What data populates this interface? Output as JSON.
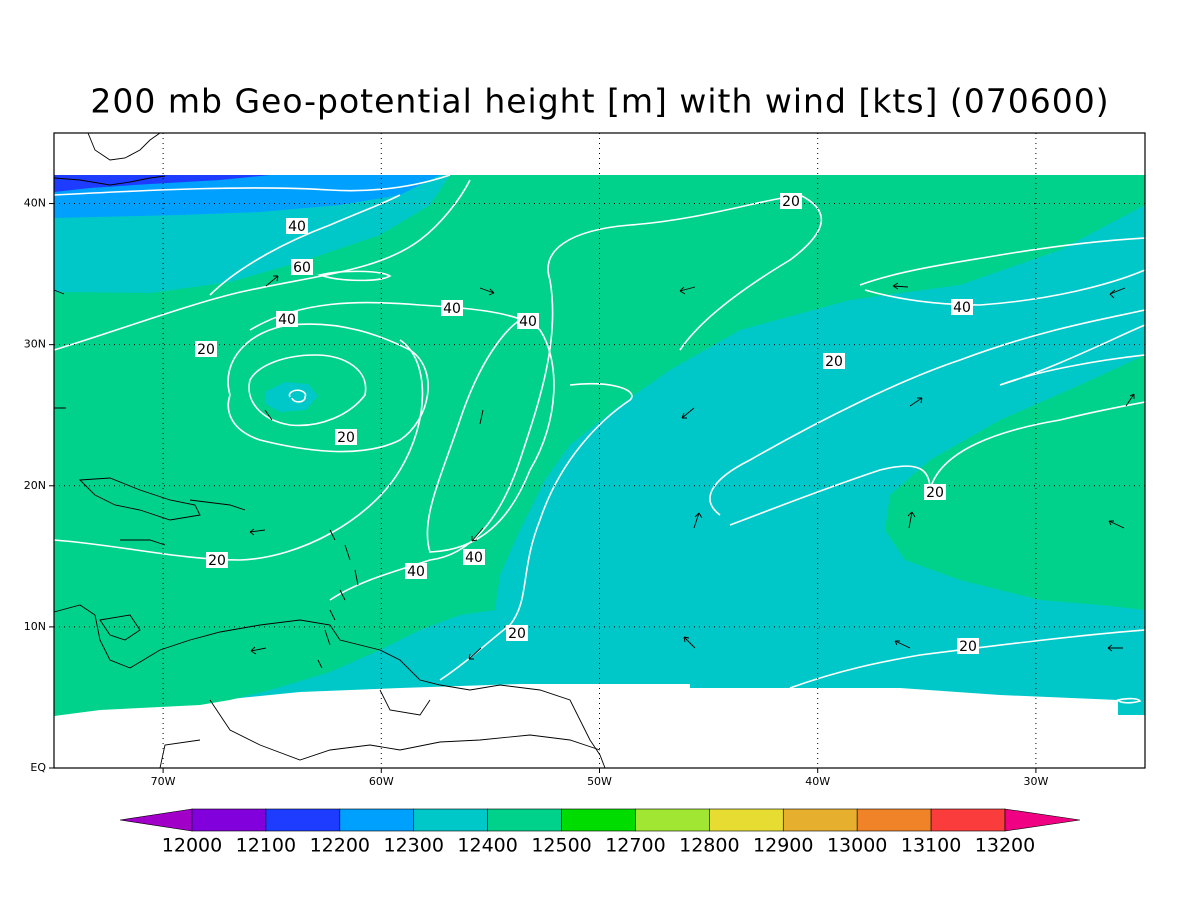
{
  "title": "200 mb Geo-potential height [m] with wind [kts] (070600)",
  "map": {
    "xlim": [
      -75,
      -25
    ],
    "ylim": [
      0,
      45
    ],
    "xticks": [
      {
        "value": -70,
        "label": "70W"
      },
      {
        "value": -60,
        "label": "60W"
      },
      {
        "value": -50,
        "label": "50W"
      },
      {
        "value": -40,
        "label": "40W"
      },
      {
        "value": -30,
        "label": "30W"
      }
    ],
    "yticks": [
      {
        "value": 0,
        "label": "EQ"
      },
      {
        "value": 10,
        "label": "10N"
      },
      {
        "value": 20,
        "label": "20N"
      },
      {
        "value": 30,
        "label": "30N"
      },
      {
        "value": 40,
        "label": "40N"
      }
    ],
    "grid": true
  },
  "contour_labels": [
    40,
    60,
    40,
    40,
    40,
    20,
    20,
    20,
    40,
    20,
    20,
    40,
    40,
    20,
    20,
    20
  ],
  "colorbar": {
    "levels": [
      12000,
      12100,
      12200,
      12300,
      12400,
      12500,
      12700,
      12800,
      12900,
      13000,
      13100,
      13200
    ],
    "colors": [
      "#a000c8",
      "#8200dc",
      "#1e3cff",
      "#00a0ff",
      "#00c8c8",
      "#00d28c",
      "#00dc00",
      "#a0e632",
      "#e6dc32",
      "#e6af2d",
      "#f08228",
      "#fa3c3c",
      "#f00082"
    ]
  }
}
